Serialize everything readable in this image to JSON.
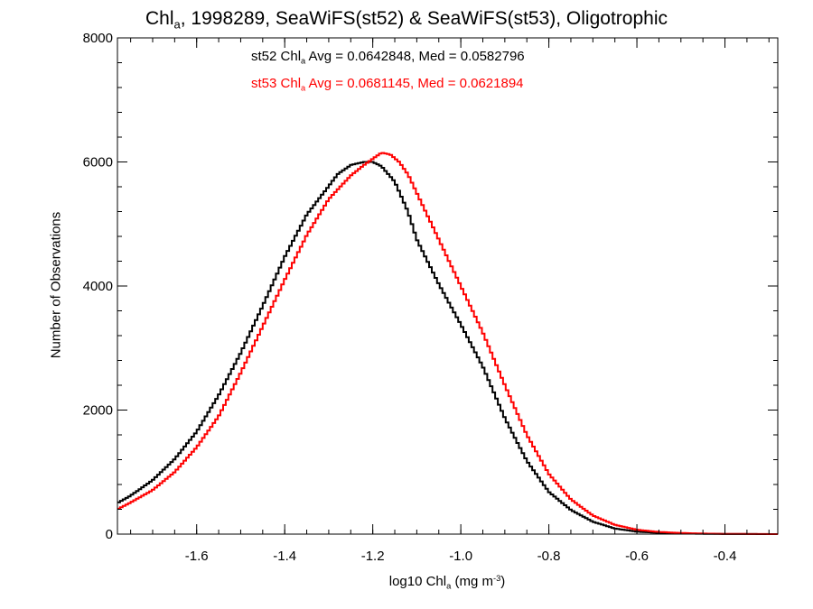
{
  "chart_data": {
    "type": "line",
    "step": true,
    "title": {
      "prefix": "Chl",
      "prefix_sub": "a",
      "rest": ", 1998289, SeaWiFS(st52) & SeaWiFS(st53), Oligotrophic"
    },
    "xlabel": {
      "prefix": "log10 Chl",
      "prefix_sub": "a",
      "unit_start": " (mg m",
      "unit_sup": "-3",
      "unit_end": ")"
    },
    "ylabel": "Number of Observations",
    "xlim": [
      -1.78,
      -0.28
    ],
    "ylim": [
      0,
      8000
    ],
    "xticks": [
      -1.6,
      -1.4,
      -1.2,
      -1.0,
      -0.8,
      -0.6,
      -0.4
    ],
    "xtick_labels": [
      "-1.6",
      "-1.4",
      "-1.2",
      "-1.0",
      "-0.8",
      "-0.6",
      "-0.4"
    ],
    "yticks": [
      0,
      2000,
      4000,
      6000,
      8000
    ],
    "ytick_labels": [
      "0",
      "2000",
      "4000",
      "6000",
      "8000"
    ],
    "annotations": [
      {
        "prefix": "st52 Chl",
        "sub": "a",
        "text": " Avg = 0.0642848, Med = 0.0582796",
        "color": "#000000"
      },
      {
        "prefix": "st53 Chl",
        "sub": "a",
        "text": " Avg = 0.0681145, Med = 0.0621894",
        "color": "#ff0000"
      }
    ],
    "series": [
      {
        "color": "#000000",
        "x": [
          -1.78,
          -1.75,
          -1.7,
          -1.65,
          -1.6,
          -1.55,
          -1.5,
          -1.45,
          -1.4,
          -1.35,
          -1.3,
          -1.28,
          -1.25,
          -1.22,
          -1.2,
          -1.18,
          -1.15,
          -1.12,
          -1.1,
          -1.05,
          -1.0,
          -0.95,
          -0.9,
          -0.85,
          -0.8,
          -0.75,
          -0.7,
          -0.65,
          -0.6,
          -0.55,
          -0.5,
          -0.45,
          -0.4,
          -0.35,
          -0.28
        ],
        "y": [
          500,
          620,
          870,
          1210,
          1650,
          2240,
          2920,
          3680,
          4470,
          5150,
          5610,
          5800,
          5950,
          6000,
          6000,
          5930,
          5680,
          5200,
          4750,
          4030,
          3380,
          2700,
          1870,
          1180,
          680,
          390,
          200,
          90,
          40,
          20,
          10,
          5,
          2,
          1,
          0
        ]
      },
      {
        "color": "#ff0000",
        "x": [
          -1.78,
          -1.75,
          -1.7,
          -1.65,
          -1.6,
          -1.55,
          -1.5,
          -1.45,
          -1.4,
          -1.35,
          -1.3,
          -1.25,
          -1.22,
          -1.2,
          -1.18,
          -1.16,
          -1.14,
          -1.12,
          -1.1,
          -1.05,
          -1.0,
          -0.95,
          -0.9,
          -0.85,
          -0.8,
          -0.75,
          -0.7,
          -0.65,
          -0.6,
          -0.55,
          -0.5,
          -0.45,
          -0.4,
          -0.35,
          -0.28
        ],
        "y": [
          400,
          510,
          710,
          1000,
          1400,
          1900,
          2600,
          3350,
          4100,
          4820,
          5400,
          5780,
          5950,
          6050,
          6150,
          6120,
          6000,
          5800,
          5500,
          4750,
          4000,
          3250,
          2400,
          1600,
          970,
          560,
          300,
          150,
          70,
          35,
          18,
          9,
          4,
          2,
          0
        ]
      }
    ]
  }
}
